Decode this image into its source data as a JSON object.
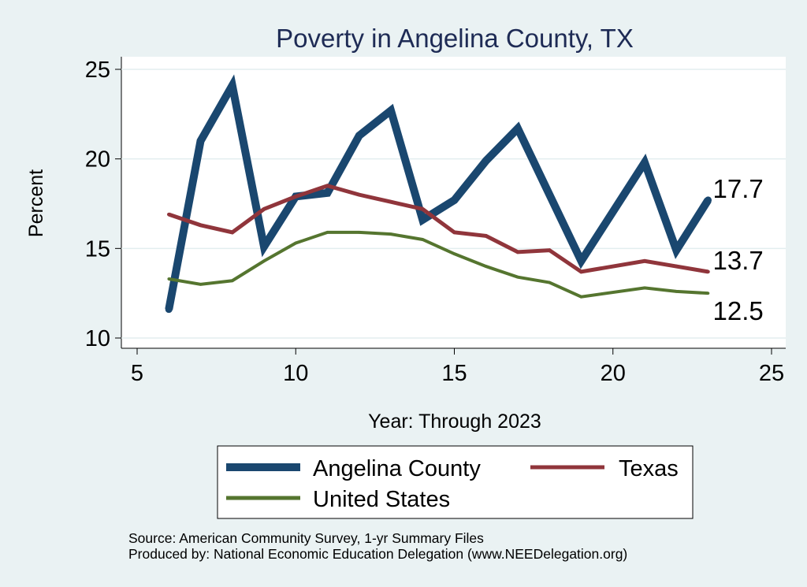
{
  "chart_data": {
    "type": "line",
    "title": "Poverty in Angelina County, TX",
    "xlabel": "Year: Through 2023",
    "ylabel": "Percent",
    "xlim": [
      4.5,
      25.5
    ],
    "ylim": [
      9.5,
      25.6
    ],
    "xticks": [
      "5",
      "10",
      "15",
      "20",
      "25"
    ],
    "yticks": [
      "10",
      "15",
      "20",
      "25"
    ],
    "grid": "horizontal",
    "series": [
      {
        "name": "Angelina County",
        "color": "#1a476f",
        "x": [
          6,
          7,
          8,
          9,
          10,
          11,
          12,
          13,
          14,
          15,
          16,
          17,
          19,
          21,
          22,
          23
        ],
        "values": [
          11.6,
          21.0,
          24.1,
          15.1,
          17.9,
          18.1,
          21.3,
          22.7,
          16.6,
          17.7,
          19.9,
          21.7,
          14.3,
          19.8,
          14.9,
          17.7
        ],
        "end_label": "17.7"
      },
      {
        "name": "Texas",
        "color": "#90353b",
        "x": [
          6,
          7,
          8,
          9,
          10,
          11,
          12,
          13,
          14,
          15,
          16,
          17,
          18,
          19,
          21,
          22,
          23
        ],
        "values": [
          16.9,
          16.3,
          15.9,
          17.2,
          17.9,
          18.5,
          18.0,
          17.6,
          17.2,
          15.9,
          15.7,
          14.8,
          14.9,
          13.7,
          14.3,
          14.0,
          13.7
        ],
        "end_label": "13.7"
      },
      {
        "name": "United States",
        "color": "#55752f",
        "x": [
          6,
          7,
          8,
          9,
          10,
          11,
          12,
          13,
          14,
          15,
          16,
          17,
          18,
          19,
          21,
          22,
          23
        ],
        "values": [
          13.3,
          13.0,
          13.2,
          14.3,
          15.3,
          15.9,
          15.9,
          15.8,
          15.5,
          14.7,
          14.0,
          13.4,
          13.1,
          12.3,
          12.8,
          12.6,
          12.5
        ],
        "end_label": "12.5"
      }
    ],
    "legend": {
      "position": "bottom",
      "items": [
        "Angelina County",
        "Texas",
        "United States"
      ]
    },
    "notes": [
      "Source: American Community Survey, 1-yr Summary Files",
      "Produced by: National Economic Education Delegation (www.NEEDelegation.org)"
    ]
  }
}
